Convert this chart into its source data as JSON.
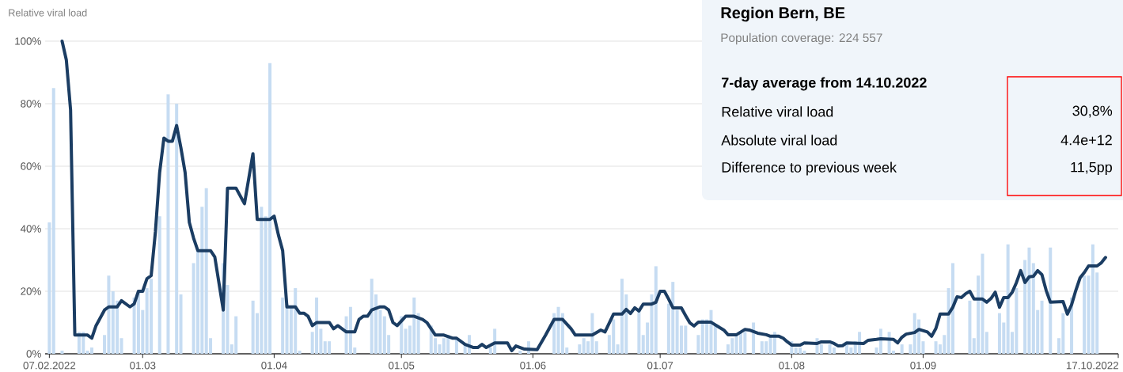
{
  "chart_data": {
    "type": "bar",
    "title": "Region Bern, BE",
    "subtitle": "Population coverage: 224 557",
    "ylabel": "Relative viral load",
    "annotations": [
      "7-day average from 14.10.2022",
      "Relative viral load",
      "30,8%",
      "Absolute viral load",
      "4.4e+12",
      "Difference to previous week",
      "11,5pp"
    ],
    "xlim": [
      "2022-02-06",
      "2022-10-17"
    ],
    "xticks": [
      {
        "value": "2022-02-07",
        "label": "07.02.2022"
      },
      {
        "value": "2022-03-01",
        "label": "01.03"
      },
      {
        "value": "2022-04-01",
        "label": "01.04"
      },
      {
        "value": "2022-05-01",
        "label": "01.05"
      },
      {
        "value": "2022-06-01",
        "label": "01.06"
      },
      {
        "value": "2022-07-01",
        "label": "01.07"
      },
      {
        "value": "2022-08-01",
        "label": "01.08"
      },
      {
        "value": "2022-09-01",
        "label": "01.09"
      },
      {
        "value": "2022-10-17",
        "label": "17.10.2022"
      }
    ],
    "ylim": [
      0,
      100
    ],
    "yticks": [
      {
        "value": 0,
        "label": "0%"
      },
      {
        "value": 20,
        "label": "20%"
      },
      {
        "value": 40,
        "label": "40%"
      },
      {
        "value": 60,
        "label": "60%"
      },
      {
        "value": 80,
        "label": "80%"
      },
      {
        "value": 100,
        "label": "100%"
      }
    ],
    "grid": "y",
    "series": [
      {
        "color": "#c6dcf2",
        "x": [
          "2022-02-07",
          "2022-02-08",
          "2022-02-09",
          "2022-02-10",
          "2022-02-13",
          "2022-02-14",
          "2022-02-15",
          "2022-02-16",
          "2022-02-17",
          "2022-02-20",
          "2022-02-21",
          "2022-02-22",
          "2022-02-23",
          "2022-02-24",
          "2022-02-27",
          "2022-02-28",
          "2022-03-01",
          "2022-03-02",
          "2022-03-03",
          "2022-03-05",
          "2022-03-07",
          "2022-03-08",
          "2022-03-09",
          "2022-03-10",
          "2022-03-13",
          "2022-03-14",
          "2022-03-15",
          "2022-03-16",
          "2022-03-17",
          "2022-03-20",
          "2022-03-21",
          "2022-03-22",
          "2022-03-23",
          "2022-03-24",
          "2022-03-27",
          "2022-03-28",
          "2022-03-29",
          "2022-03-30",
          "2022-03-31",
          "2022-04-03",
          "2022-04-04",
          "2022-04-05",
          "2022-04-06",
          "2022-04-07",
          "2022-04-10",
          "2022-04-11",
          "2022-04-12",
          "2022-04-13",
          "2022-04-14",
          "2022-04-18",
          "2022-04-19",
          "2022-04-20",
          "2022-04-24",
          "2022-04-25",
          "2022-04-26",
          "2022-04-27",
          "2022-04-28",
          "2022-05-01",
          "2022-05-02",
          "2022-05-03",
          "2022-05-04",
          "2022-05-05",
          "2022-05-08",
          "2022-05-09",
          "2022-05-10",
          "2022-05-11",
          "2022-05-12",
          "2022-05-14",
          "2022-05-16",
          "2022-05-17",
          "2022-05-22",
          "2022-05-23",
          "2022-05-29",
          "2022-05-31",
          "2022-06-06",
          "2022-06-07",
          "2022-06-08",
          "2022-06-09",
          "2022-06-12",
          "2022-06-13",
          "2022-06-14",
          "2022-06-15",
          "2022-06-16",
          "2022-06-19",
          "2022-06-20",
          "2022-06-21",
          "2022-06-22",
          "2022-06-23",
          "2022-06-26",
          "2022-06-27",
          "2022-06-28",
          "2022-06-29",
          "2022-06-30",
          "2022-07-03",
          "2022-07-04",
          "2022-07-05",
          "2022-07-06",
          "2022-07-07",
          "2022-07-10",
          "2022-07-11",
          "2022-07-12",
          "2022-07-13",
          "2022-07-14",
          "2022-07-17",
          "2022-07-18",
          "2022-07-19",
          "2022-07-20",
          "2022-07-21",
          "2022-07-23",
          "2022-07-25",
          "2022-07-26",
          "2022-07-27",
          "2022-07-28",
          "2022-08-01",
          "2022-08-02",
          "2022-08-03",
          "2022-08-04",
          "2022-08-07",
          "2022-08-08",
          "2022-08-10",
          "2022-08-11",
          "2022-08-14",
          "2022-08-15",
          "2022-08-16",
          "2022-08-17",
          "2022-08-21",
          "2022-08-22",
          "2022-08-24",
          "2022-08-25",
          "2022-08-27",
          "2022-08-29",
          "2022-08-30",
          "2022-08-31",
          "2022-09-01",
          "2022-09-04",
          "2022-09-05",
          "2022-09-06",
          "2022-09-07",
          "2022-09-08",
          "2022-09-12",
          "2022-09-13",
          "2022-09-14",
          "2022-09-15",
          "2022-09-16",
          "2022-09-19",
          "2022-09-20",
          "2022-09-21",
          "2022-09-22",
          "2022-09-23",
          "2022-09-25",
          "2022-09-26",
          "2022-09-27",
          "2022-09-28",
          "2022-09-29",
          "2022-10-01",
          "2022-10-03",
          "2022-10-04",
          "2022-10-06",
          "2022-10-09",
          "2022-10-10",
          "2022-10-11",
          "2022-10-12"
        ],
        "values": [
          42,
          85,
          null,
          1,
          null,
          7,
          7,
          1,
          2,
          6,
          25,
          20,
          17,
          5,
          18,
          20,
          14,
          21,
          24,
          44,
          83,
          null,
          80,
          19,
          29,
          33,
          47,
          53,
          5,
          29,
          22,
          3,
          12,
          null,
          17,
          13,
          47,
          44,
          93,
          18,
          16,
          15,
          21,
          1,
          7,
          18,
          8,
          4,
          4,
          12,
          15,
          2,
          24,
          19,
          14,
          12,
          6,
          12,
          8,
          9,
          18,
          13,
          9,
          5,
          3,
          5,
          6,
          5,
          3,
          6,
          2,
          8,
          1,
          4,
          13,
          15,
          13,
          2,
          3,
          5,
          4,
          13,
          4,
          6,
          11,
          3,
          24,
          19,
          14,
          6,
          10,
          19,
          28,
          16,
          23,
          14,
          9,
          9,
          6,
          11,
          11,
          14,
          9,
          3,
          5,
          6,
          7,
          7,
          10,
          4,
          4,
          6,
          7,
          4,
          2,
          2,
          1,
          5,
          3,
          3,
          2,
          3,
          2,
          4,
          7,
          2,
          8,
          7,
          1,
          3,
          3,
          13,
          11,
          4,
          4,
          3,
          6,
          21,
          29,
          17,
          5,
          25,
          32,
          7,
          13,
          10,
          35,
          7,
          21,
          30,
          34,
          29,
          14,
          17,
          34,
          5,
          13,
          18,
          25,
          25,
          35,
          26
        ]
      },
      {
        "type": "line",
        "color": "#1b3d63",
        "line_style": "solid",
        "x": [
          "2022-02-10",
          "2022-02-11",
          "2022-02-12",
          "2022-02-13",
          "2022-02-16",
          "2022-02-17",
          "2022-02-18",
          "2022-02-20",
          "2022-02-21",
          "2022-02-23",
          "2022-02-24",
          "2022-02-26",
          "2022-02-27",
          "2022-02-28",
          "2022-03-01",
          "2022-03-02",
          "2022-03-03",
          "2022-03-04",
          "2022-03-05",
          "2022-03-06",
          "2022-03-07",
          "2022-03-08",
          "2022-03-09",
          "2022-03-10",
          "2022-03-11",
          "2022-03-12",
          "2022-03-13",
          "2022-03-14",
          "2022-03-17",
          "2022-03-18",
          "2022-03-20",
          "2022-03-21",
          "2022-03-23",
          "2022-03-25",
          "2022-03-27",
          "2022-03-28",
          "2022-03-31",
          "2022-04-01",
          "2022-04-02",
          "2022-04-03",
          "2022-04-04",
          "2022-04-06",
          "2022-04-07",
          "2022-04-08",
          "2022-04-09",
          "2022-04-10",
          "2022-04-11",
          "2022-04-14",
          "2022-04-15",
          "2022-04-16",
          "2022-04-18",
          "2022-04-20",
          "2022-04-21",
          "2022-04-22",
          "2022-04-23",
          "2022-04-24",
          "2022-04-26",
          "2022-04-27",
          "2022-04-28",
          "2022-04-29",
          "2022-04-30",
          "2022-05-02",
          "2022-05-04",
          "2022-05-06",
          "2022-05-07",
          "2022-05-09",
          "2022-05-11",
          "2022-05-13",
          "2022-05-14",
          "2022-05-16",
          "2022-05-18",
          "2022-05-19",
          "2022-05-20",
          "2022-05-21",
          "2022-05-23",
          "2022-05-26",
          "2022-05-27",
          "2022-05-28",
          "2022-05-30",
          "2022-06-02",
          "2022-06-04",
          "2022-06-06",
          "2022-06-08",
          "2022-06-10",
          "2022-06-11",
          "2022-06-15",
          "2022-06-17",
          "2022-06-18",
          "2022-06-20",
          "2022-06-22",
          "2022-06-23",
          "2022-06-24",
          "2022-06-25",
          "2022-06-26",
          "2022-06-27",
          "2022-06-29",
          "2022-06-30",
          "2022-07-01",
          "2022-07-02",
          "2022-07-03",
          "2022-07-04",
          "2022-07-06",
          "2022-07-07",
          "2022-07-08",
          "2022-07-09",
          "2022-07-10",
          "2022-07-13",
          "2022-07-15",
          "2022-07-16",
          "2022-07-17",
          "2022-07-19",
          "2022-07-21",
          "2022-07-22",
          "2022-07-24",
          "2022-07-26",
          "2022-07-27",
          "2022-07-29",
          "2022-07-30",
          "2022-07-31",
          "2022-08-01",
          "2022-08-03",
          "2022-08-04",
          "2022-08-07",
          "2022-08-08",
          "2022-08-10",
          "2022-08-11",
          "2022-08-12",
          "2022-08-13",
          "2022-08-14",
          "2022-08-18",
          "2022-08-19",
          "2022-08-21",
          "2022-08-22",
          "2022-08-25",
          "2022-08-26",
          "2022-08-27",
          "2022-08-28",
          "2022-08-30",
          "2022-08-31",
          "2022-09-02",
          "2022-09-03",
          "2022-09-04",
          "2022-09-05",
          "2022-09-07",
          "2022-09-08",
          "2022-09-09",
          "2022-09-10",
          "2022-09-11",
          "2022-09-12",
          "2022-09-13",
          "2022-09-15",
          "2022-09-16",
          "2022-09-17",
          "2022-09-18",
          "2022-09-19",
          "2022-09-20",
          "2022-09-21",
          "2022-09-22",
          "2022-09-23",
          "2022-09-24",
          "2022-09-25",
          "2022-09-26",
          "2022-09-27",
          "2022-09-28",
          "2022-09-29",
          "2022-09-30",
          "2022-10-01",
          "2022-10-04",
          "2022-10-05",
          "2022-10-06",
          "2022-10-07",
          "2022-10-08",
          "2022-10-09",
          "2022-10-10",
          "2022-10-12",
          "2022-10-13",
          "2022-10-14"
        ],
        "values": [
          100,
          94,
          78,
          6,
          6,
          5,
          9,
          14,
          15,
          15,
          17,
          15,
          16,
          20,
          20,
          24,
          25,
          39,
          58,
          69,
          68,
          68,
          73,
          66,
          58,
          42,
          37,
          33,
          33,
          31,
          14,
          53,
          53,
          48,
          64,
          43,
          43,
          44,
          38,
          33,
          15,
          15,
          13,
          13,
          12,
          9,
          10,
          10,
          8,
          9,
          7,
          7,
          11,
          12,
          12,
          14,
          15,
          15,
          14,
          10,
          9,
          12,
          12,
          11,
          10,
          6,
          6,
          5,
          5,
          3,
          2,
          2,
          3,
          2,
          3.5,
          3.5,
          1,
          2.5,
          1.5,
          1.3,
          6,
          11,
          11,
          8,
          6,
          6,
          7.6,
          7,
          12.7,
          12.7,
          14.2,
          12.9,
          14.7,
          13.7,
          15.9,
          15.9,
          16.5,
          20,
          20,
          17.5,
          14.7,
          14.7,
          12.2,
          9.9,
          8.9,
          10.1,
          10.1,
          8.4,
          7.6,
          6.1,
          6.1,
          7.8,
          7.6,
          6.6,
          6.1,
          5.6,
          5.6,
          5,
          3.8,
          2.8,
          2.8,
          3.5,
          3.3,
          3.8,
          3.8,
          3.3,
          2.5,
          2.6,
          3.5,
          3.3,
          4.3,
          4.6,
          4.8,
          4.6,
          3.5,
          5.3,
          6.3,
          6.8,
          7.8,
          7,
          5.6,
          8.1,
          12.7,
          12.7,
          14.9,
          18.2,
          18,
          19.2,
          20,
          17.5,
          17.5,
          16.5,
          17.7,
          19.7,
          14.9,
          18,
          18,
          19.7,
          22.8,
          26.6,
          22.8,
          24.6,
          24.8,
          26.6,
          25.3,
          20.3,
          16.5,
          16.7,
          12.7,
          15.7,
          20.3,
          24.3,
          26,
          28.1,
          28.1,
          29.1,
          30.8
        ]
      }
    ]
  }
}
